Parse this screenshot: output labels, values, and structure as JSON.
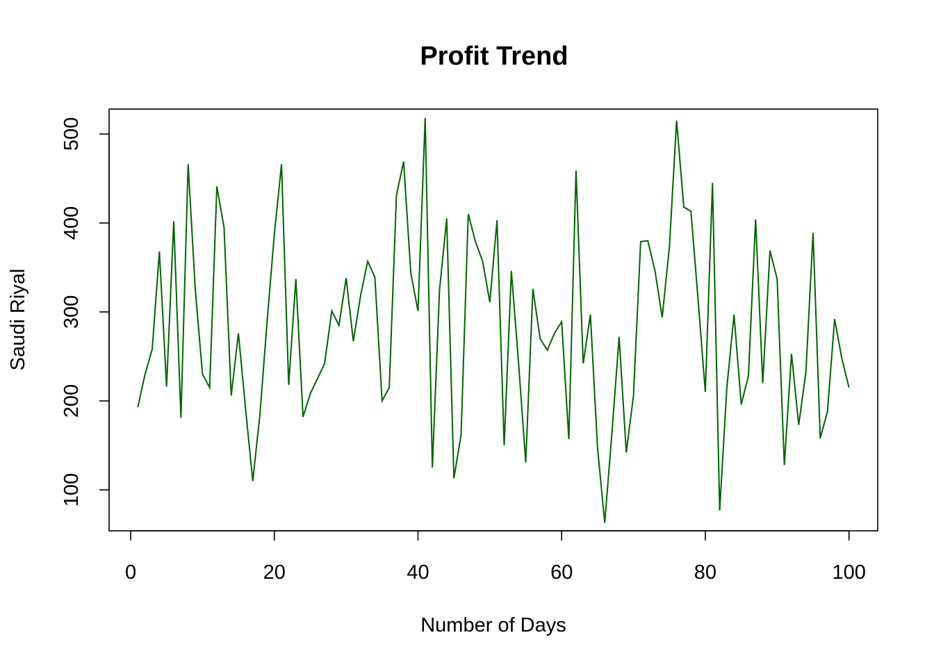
{
  "chart_data": {
    "type": "line",
    "title": "Profit Trend",
    "xlabel": "Number of Days",
    "ylabel": "Saudi Riyal",
    "xlim": [
      -3,
      104
    ],
    "ylim": [
      54,
      528
    ],
    "x_ticks": [
      0,
      20,
      40,
      60,
      80,
      100
    ],
    "y_ticks": [
      100,
      200,
      300,
      400,
      500
    ],
    "grid": false,
    "legend": "none",
    "line_color": "#006400",
    "series": [
      {
        "x": [
          1,
          2,
          3,
          4,
          5,
          6,
          7,
          8,
          9,
          10,
          11,
          12,
          13,
          14,
          15,
          16,
          17,
          18,
          19,
          20,
          21,
          22,
          23,
          24,
          25,
          26,
          27,
          28,
          29,
          30,
          31,
          32,
          33,
          34,
          35,
          36,
          37,
          38,
          39,
          40,
          41,
          42,
          43,
          44,
          45,
          46,
          47,
          48,
          49,
          50,
          51,
          52,
          53,
          54,
          55,
          56,
          57,
          58,
          59,
          60,
          61,
          62,
          63,
          64,
          65,
          66,
          67,
          68,
          69,
          70,
          71,
          72,
          73,
          74,
          75,
          76,
          77,
          78,
          79,
          80,
          81,
          82,
          83,
          84,
          85,
          86,
          87,
          88,
          89,
          90,
          91,
          92,
          93,
          94,
          95,
          96,
          97,
          98,
          99,
          100
        ],
        "values": [
          193,
          230,
          258,
          368,
          216,
          402,
          181,
          466,
          325,
          230,
          215,
          441,
          395,
          206,
          276,
          191,
          110,
          185,
          290,
          387,
          466,
          218,
          337,
          182,
          208,
          225,
          242,
          301,
          285,
          338,
          267,
          318,
          357,
          339,
          200,
          215,
          431,
          469,
          344,
          301,
          518,
          125,
          325,
          405,
          113,
          162,
          410,
          379,
          357,
          311,
          403,
          150,
          346,
          243,
          131,
          326,
          270,
          257,
          276,
          289,
          157,
          459,
          242,
          297,
          147,
          63,
          164,
          272,
          142,
          206,
          379,
          380,
          346,
          294,
          373,
          515,
          418,
          413,
          313,
          210,
          445,
          77,
          215,
          297,
          196,
          228,
          404,
          220,
          369,
          337,
          128,
          253,
          173,
          232,
          389,
          158,
          188,
          292,
          248,
          215
        ]
      }
    ]
  }
}
